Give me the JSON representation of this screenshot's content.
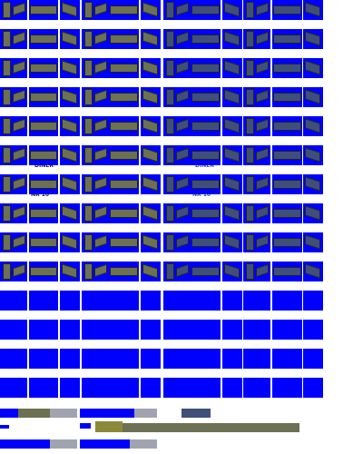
{
  "colors": {
    "sprite_background": "#0000ff",
    "page_background": "#ffffff",
    "olive_coach": "#6b7152",
    "blue_coach": "#3f4f7a",
    "coupling": "#a0a4b0"
  },
  "sheet": {
    "halves": [
      "olive-coaches",
      "blue-coaches"
    ],
    "coach_rows": 10,
    "blank_rows": 4
  },
  "labels": {
    "diner_olive": "DINER",
    "diner_blue": "DINER",
    "nr10_olive": "NR 10",
    "nr10_blue": "NR 10"
  }
}
